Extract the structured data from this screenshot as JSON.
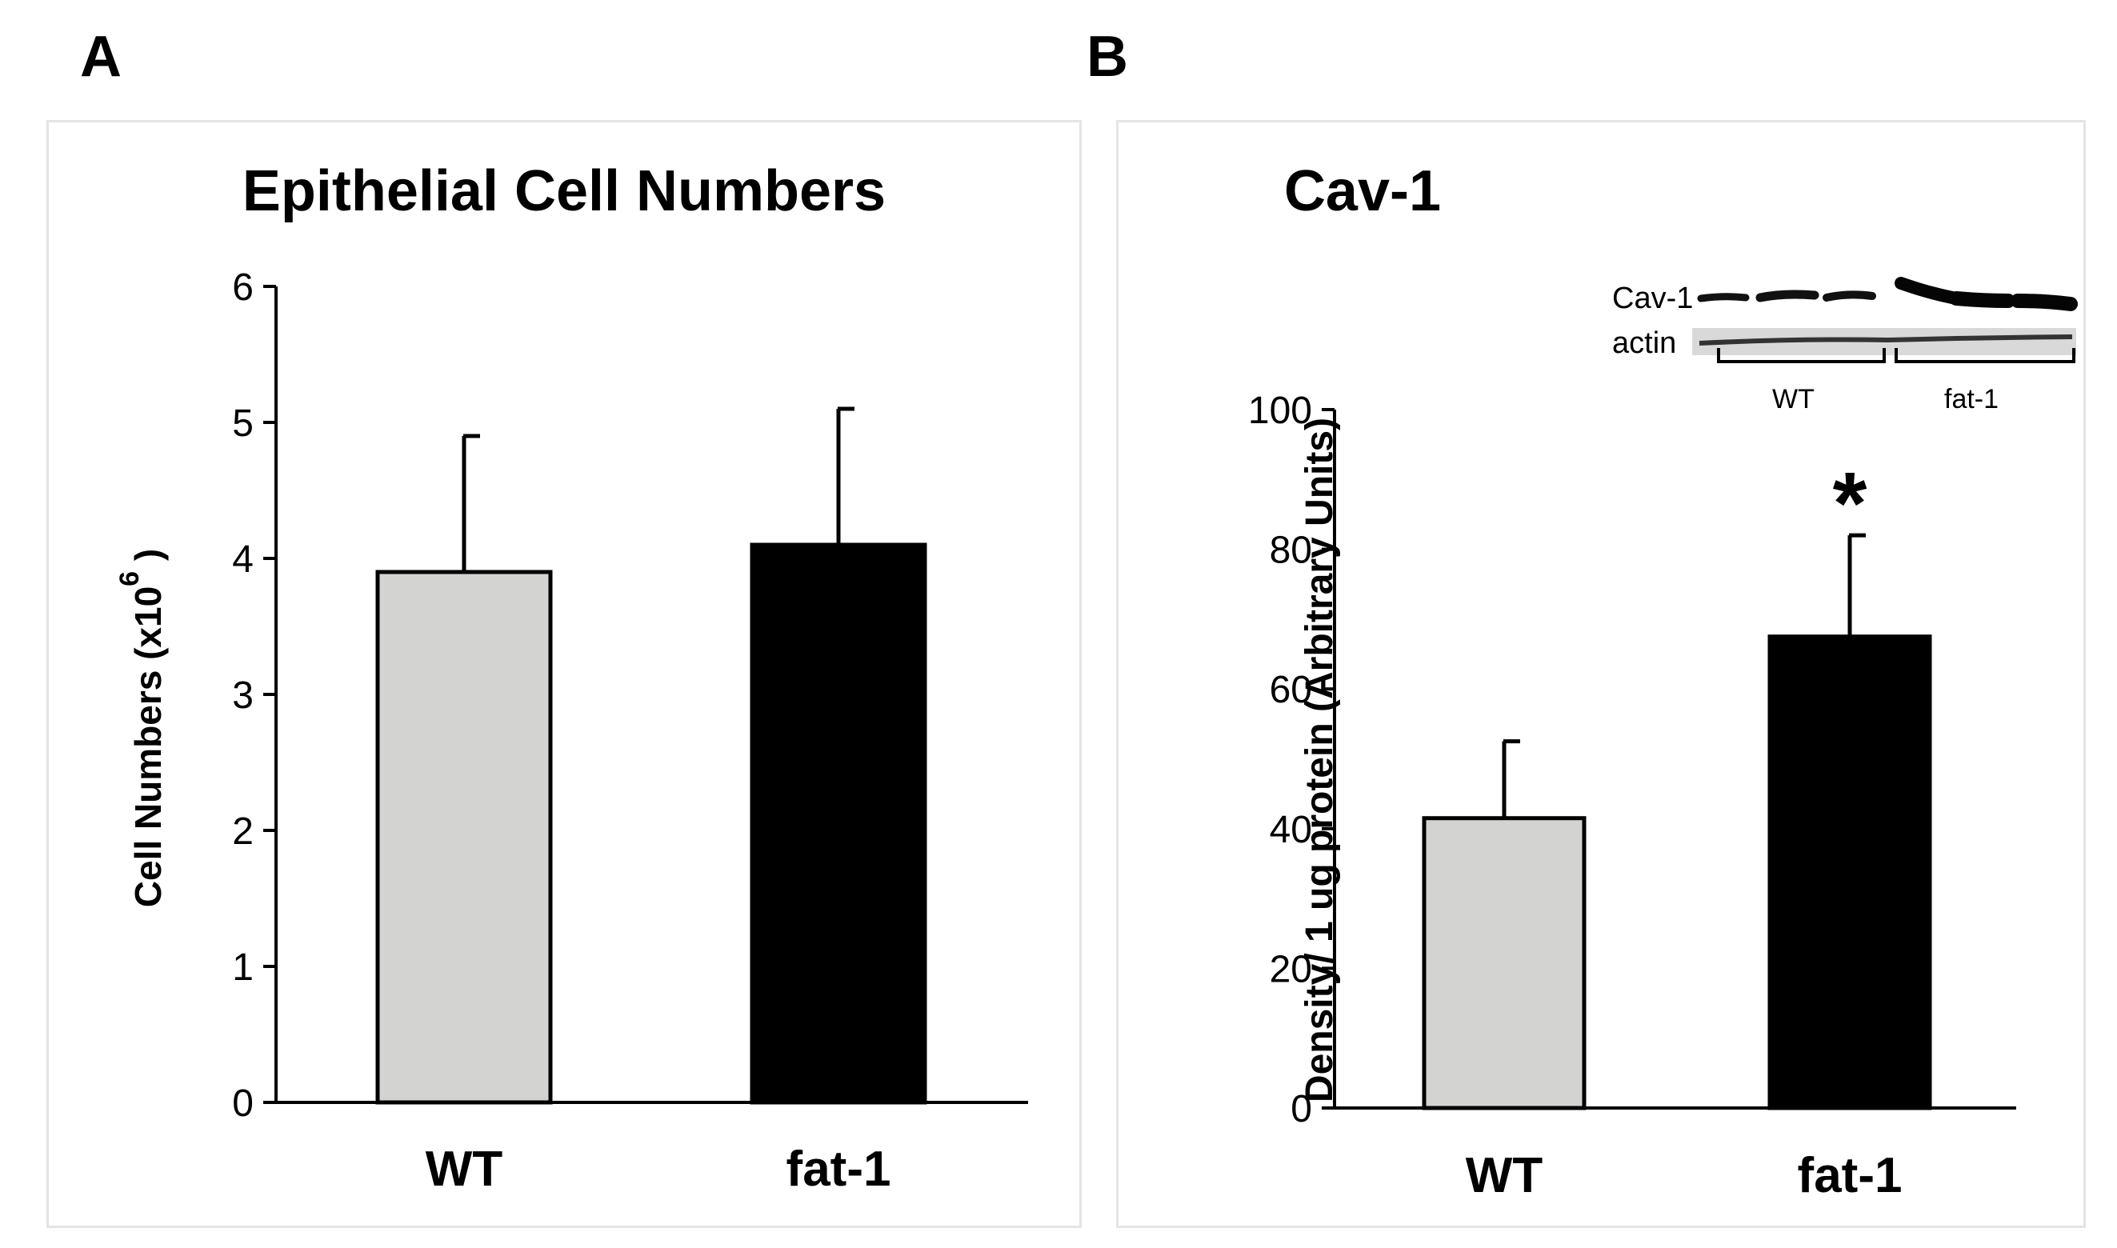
{
  "panels": {
    "a": {
      "letter": "A"
    },
    "b": {
      "letter": "B"
    }
  },
  "colors": {
    "wt_bar": "#d3d3d1",
    "fat1_bar": "#000000",
    "axis": "#000000",
    "frame": "#e4e4e4"
  },
  "chart_data": [
    {
      "type": "bar",
      "title": "Epithelial Cell Numbers",
      "ylabel": "Cell Numbers (x10",
      "ylabel_sup": "6",
      "ylabel_end": ")",
      "xlabel": "",
      "categories": [
        "WT",
        "fat-1"
      ],
      "values": [
        3.9,
        4.1
      ],
      "errors": [
        1.0,
        1.0
      ],
      "ylim": [
        0,
        6
      ],
      "yticks": [
        0,
        1,
        2,
        3,
        4,
        5,
        6
      ],
      "grid": false
    },
    {
      "type": "bar",
      "title": "Cav-1",
      "ylabel": "Density/ 1 ug protein (Arbitrary Units)",
      "xlabel": "",
      "categories": [
        "WT",
        "fat-1"
      ],
      "values": [
        41.5,
        67.5
      ],
      "errors": [
        11.0,
        14.5
      ],
      "ylim": [
        0,
        100
      ],
      "yticks": [
        0,
        20,
        40,
        60,
        80,
        100
      ],
      "grid": false,
      "annotations": [
        "*"
      ],
      "inset": {
        "rows": [
          "Cav-1",
          "actin"
        ],
        "groups": [
          "WT",
          "fat-1"
        ]
      }
    }
  ]
}
